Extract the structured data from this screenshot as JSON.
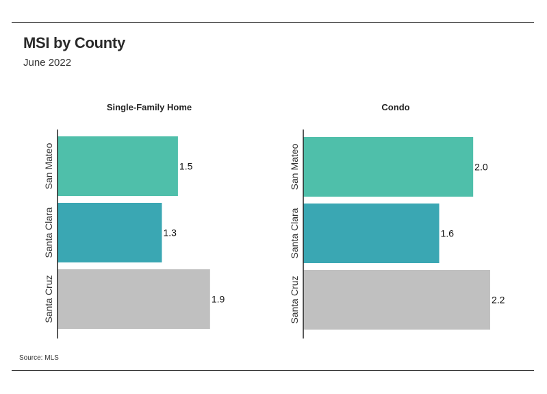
{
  "header": {
    "title": "MSI by County",
    "subtitle": "June 2022"
  },
  "footer": {
    "source": "Source:  MLS"
  },
  "colors": {
    "San Mateo": "#4fbfaa",
    "Santa Clara": "#3aa7b3",
    "Santa Cruz": "#c0c0c0"
  },
  "chart_data": [
    {
      "type": "bar",
      "orientation": "horizontal",
      "title": "Single-Family Home",
      "categories": [
        "San Mateo",
        "Santa Clara",
        "Santa Cruz"
      ],
      "values": [
        1.5,
        1.3,
        1.9
      ],
      "labels": [
        "1.5",
        "1.3",
        "1.9"
      ],
      "xlim": [
        0,
        2.2
      ]
    },
    {
      "type": "bar",
      "orientation": "horizontal",
      "title": "Condo",
      "categories": [
        "San Mateo",
        "Santa Clara",
        "Santa Cruz"
      ],
      "values": [
        2.0,
        1.6,
        2.2
      ],
      "labels": [
        "2.0",
        "1.6",
        "2.2"
      ],
      "xlim": [
        0,
        2.2
      ]
    }
  ]
}
